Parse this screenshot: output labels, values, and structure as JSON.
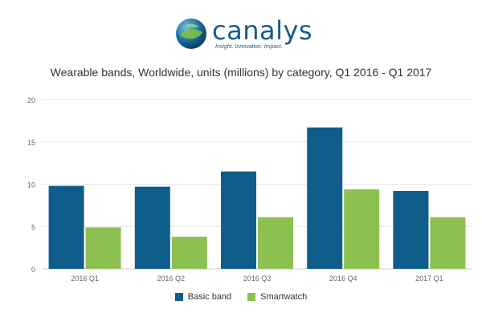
{
  "brand": {
    "name": "canalys",
    "tagline": "Insight. Innovation. Impact.",
    "logo_icon": "globe-icon",
    "primary_color": "#1a5a89",
    "accent_color": "#4caf2a"
  },
  "chart_data": {
    "type": "bar",
    "title": "Wearable bands, Worldwide, units (millions) by category, Q1 2016 - Q1 2017",
    "xlabel": "",
    "ylabel": "",
    "categories": [
      "2016 Q1",
      "2016 Q2",
      "2016 Q3",
      "2016 Q4",
      "2017 Q1"
    ],
    "series": [
      {
        "name": "Basic band",
        "color": "#0f5d8a",
        "values": [
          9.8,
          9.7,
          11.5,
          16.7,
          9.2
        ]
      },
      {
        "name": "Smartwatch",
        "color": "#8cc152",
        "values": [
          4.9,
          3.8,
          6.1,
          9.4,
          6.1
        ]
      }
    ],
    "ylim": [
      0,
      20
    ],
    "yticks": [
      0,
      5,
      10,
      15,
      20
    ],
    "grid": true,
    "legend": "bottom"
  }
}
